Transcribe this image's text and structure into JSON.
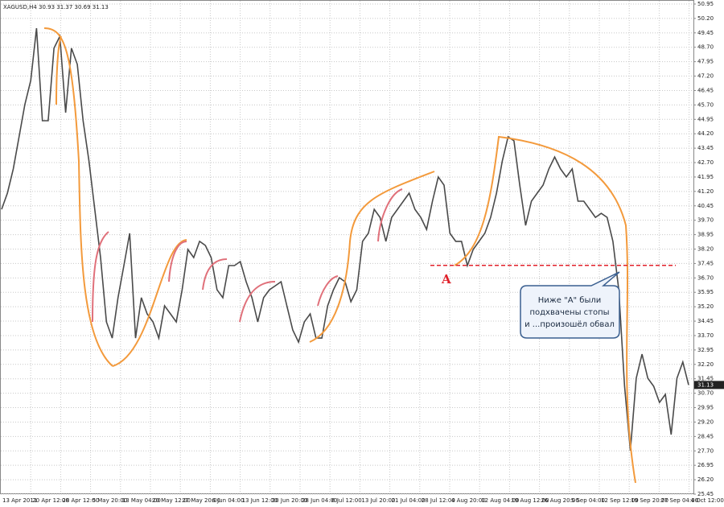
{
  "chart_data": {
    "type": "line",
    "title": "XAGUSD,H4  30.93 31.37 30.69 31.13",
    "color": "#4a4a4a",
    "values": [
      40.27,
      41.11,
      42.37,
      44.04,
      45.72,
      46.97,
      49.69,
      44.88,
      44.88,
      48.65,
      49.27,
      45.3,
      48.65,
      47.81,
      44.88,
      42.78,
      40.27,
      37.76,
      34.41,
      33.57,
      35.67,
      37.34,
      39.02,
      33.57,
      35.67,
      34.83,
      34.41,
      33.57,
      35.25,
      34.83,
      34.41,
      36.08,
      38.18,
      37.76,
      38.6,
      38.39,
      37.76,
      36.08,
      35.67,
      37.34,
      37.34,
      37.55,
      36.5,
      35.67,
      34.41,
      35.67,
      36.08,
      36.29,
      36.5,
      35.25,
      33.99,
      33.36,
      34.41,
      34.83,
      33.57,
      33.57,
      35.25,
      36.08,
      36.71,
      36.5,
      35.46,
      36.08,
      38.6,
      39.02,
      40.27,
      39.85,
      38.6,
      39.85,
      40.27,
      40.69,
      41.11,
      40.27,
      39.85,
      39.22,
      40.69,
      41.95,
      41.53,
      39.02,
      38.6,
      38.6,
      37.34,
      38.18,
      38.6,
      39.02,
      39.85,
      41.11,
      42.78,
      44.04,
      43.83,
      41.53,
      39.43,
      40.69,
      41.11,
      41.53,
      42.37,
      42.99,
      42.37,
      41.95,
      42.37,
      40.69,
      40.69,
      40.27,
      39.85,
      40.06,
      39.85,
      38.6,
      36.08,
      31.06,
      27.71,
      31.48,
      32.73,
      31.48,
      31.06,
      30.22,
      30.64,
      28.55,
      31.48,
      32.32,
      31.13
    ],
    "ylim": [
      25.45,
      50.95
    ],
    "yticks": [
      50.95,
      {
        "value": 50.2,
        "label": "50.20"
      },
      49.45,
      {
        "value": 48.7,
        "label": "48.70"
      },
      47.95,
      {
        "value": 47.2,
        "label": "47.20"
      },
      46.45,
      {
        "value": 45.7,
        "label": "45.70"
      },
      44.95,
      {
        "value": 44.2,
        "label": "44.20"
      },
      43.45,
      {
        "value": 42.7,
        "label": "42.70"
      },
      41.95,
      {
        "value": 41.2,
        "label": "41.20"
      },
      40.45,
      {
        "value": 39.7,
        "label": "39.70"
      },
      38.95,
      {
        "value": 38.2,
        "label": "38.20"
      },
      37.45,
      {
        "value": 36.7,
        "label": "36.70"
      },
      35.95,
      {
        "value": 35.2,
        "label": "35.20"
      },
      34.45,
      {
        "value": 33.7,
        "label": "33.70"
      },
      32.95,
      {
        "value": 32.2,
        "label": "32.20"
      },
      31.45,
      {
        "value": 30.7,
        "label": "30.70"
      },
      29.95,
      {
        "value": 29.2,
        "label": "29.20"
      },
      28.45,
      {
        "value": 27.7,
        "label": "27.70"
      },
      26.95,
      {
        "value": 26.2,
        "label": "26.20"
      },
      25.45
    ],
    "x_labels": [
      "13 Apr 2011",
      "20 Apr 12:00",
      "28 Apr 12:00",
      "5 May 20:00",
      "13 May 04:00",
      "20 May 12:00",
      "27 May 20:00",
      "6 Jun 04:00",
      "13 Jun 12:00",
      "20 Jun 20:00",
      "28 Jun 04:00",
      "6 Jul 12:00",
      "13 Jul 20:00",
      "21 Jul 04:00",
      "28 Jul 12:00",
      "4 Aug 20:00",
      "12 Aug 04:00",
      "19 Aug 12:00",
      "26 Aug 20:00",
      "5 Sep 04:00",
      "12 Sep 12:00",
      "19 Sep 20:00",
      "27 Sep 04:00",
      "4 Oct 12:00"
    ],
    "grid": true,
    "current_price": 31.13,
    "level": 37.35,
    "level_label": "A",
    "callout": [
      "Ниже \"A\" были",
      "подхвачены стопы",
      "и ...произошёл обвал"
    ]
  }
}
